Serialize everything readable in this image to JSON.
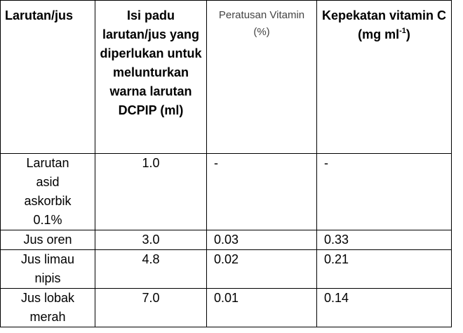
{
  "table": {
    "headers": {
      "col1": "Larutan/jus",
      "col2": "Isi padu larutan/jus yang diperlukan untuk melunturkan warna larutan DCPIP (ml)",
      "col3": "Peratusan Vitamin (%)",
      "col4_main": "Kepekatan vitamin C (mg ml",
      "col4_sup": "-1",
      "col4_end": ")"
    },
    "rows": [
      {
        "name": "Larutan asid askorbik 0.1%",
        "volume": "1.0",
        "percent": "-",
        "concentration": "-"
      },
      {
        "name": "Jus oren",
        "volume": "3.0",
        "percent": "0.03",
        "concentration": "0.33"
      },
      {
        "name": "Jus limau nipis",
        "volume": "4.8",
        "percent": "0.02",
        "concentration": "0.21"
      },
      {
        "name": "Jus lobak merah",
        "volume": "7.0",
        "percent": "0.01",
        "concentration": "0.14"
      }
    ]
  }
}
